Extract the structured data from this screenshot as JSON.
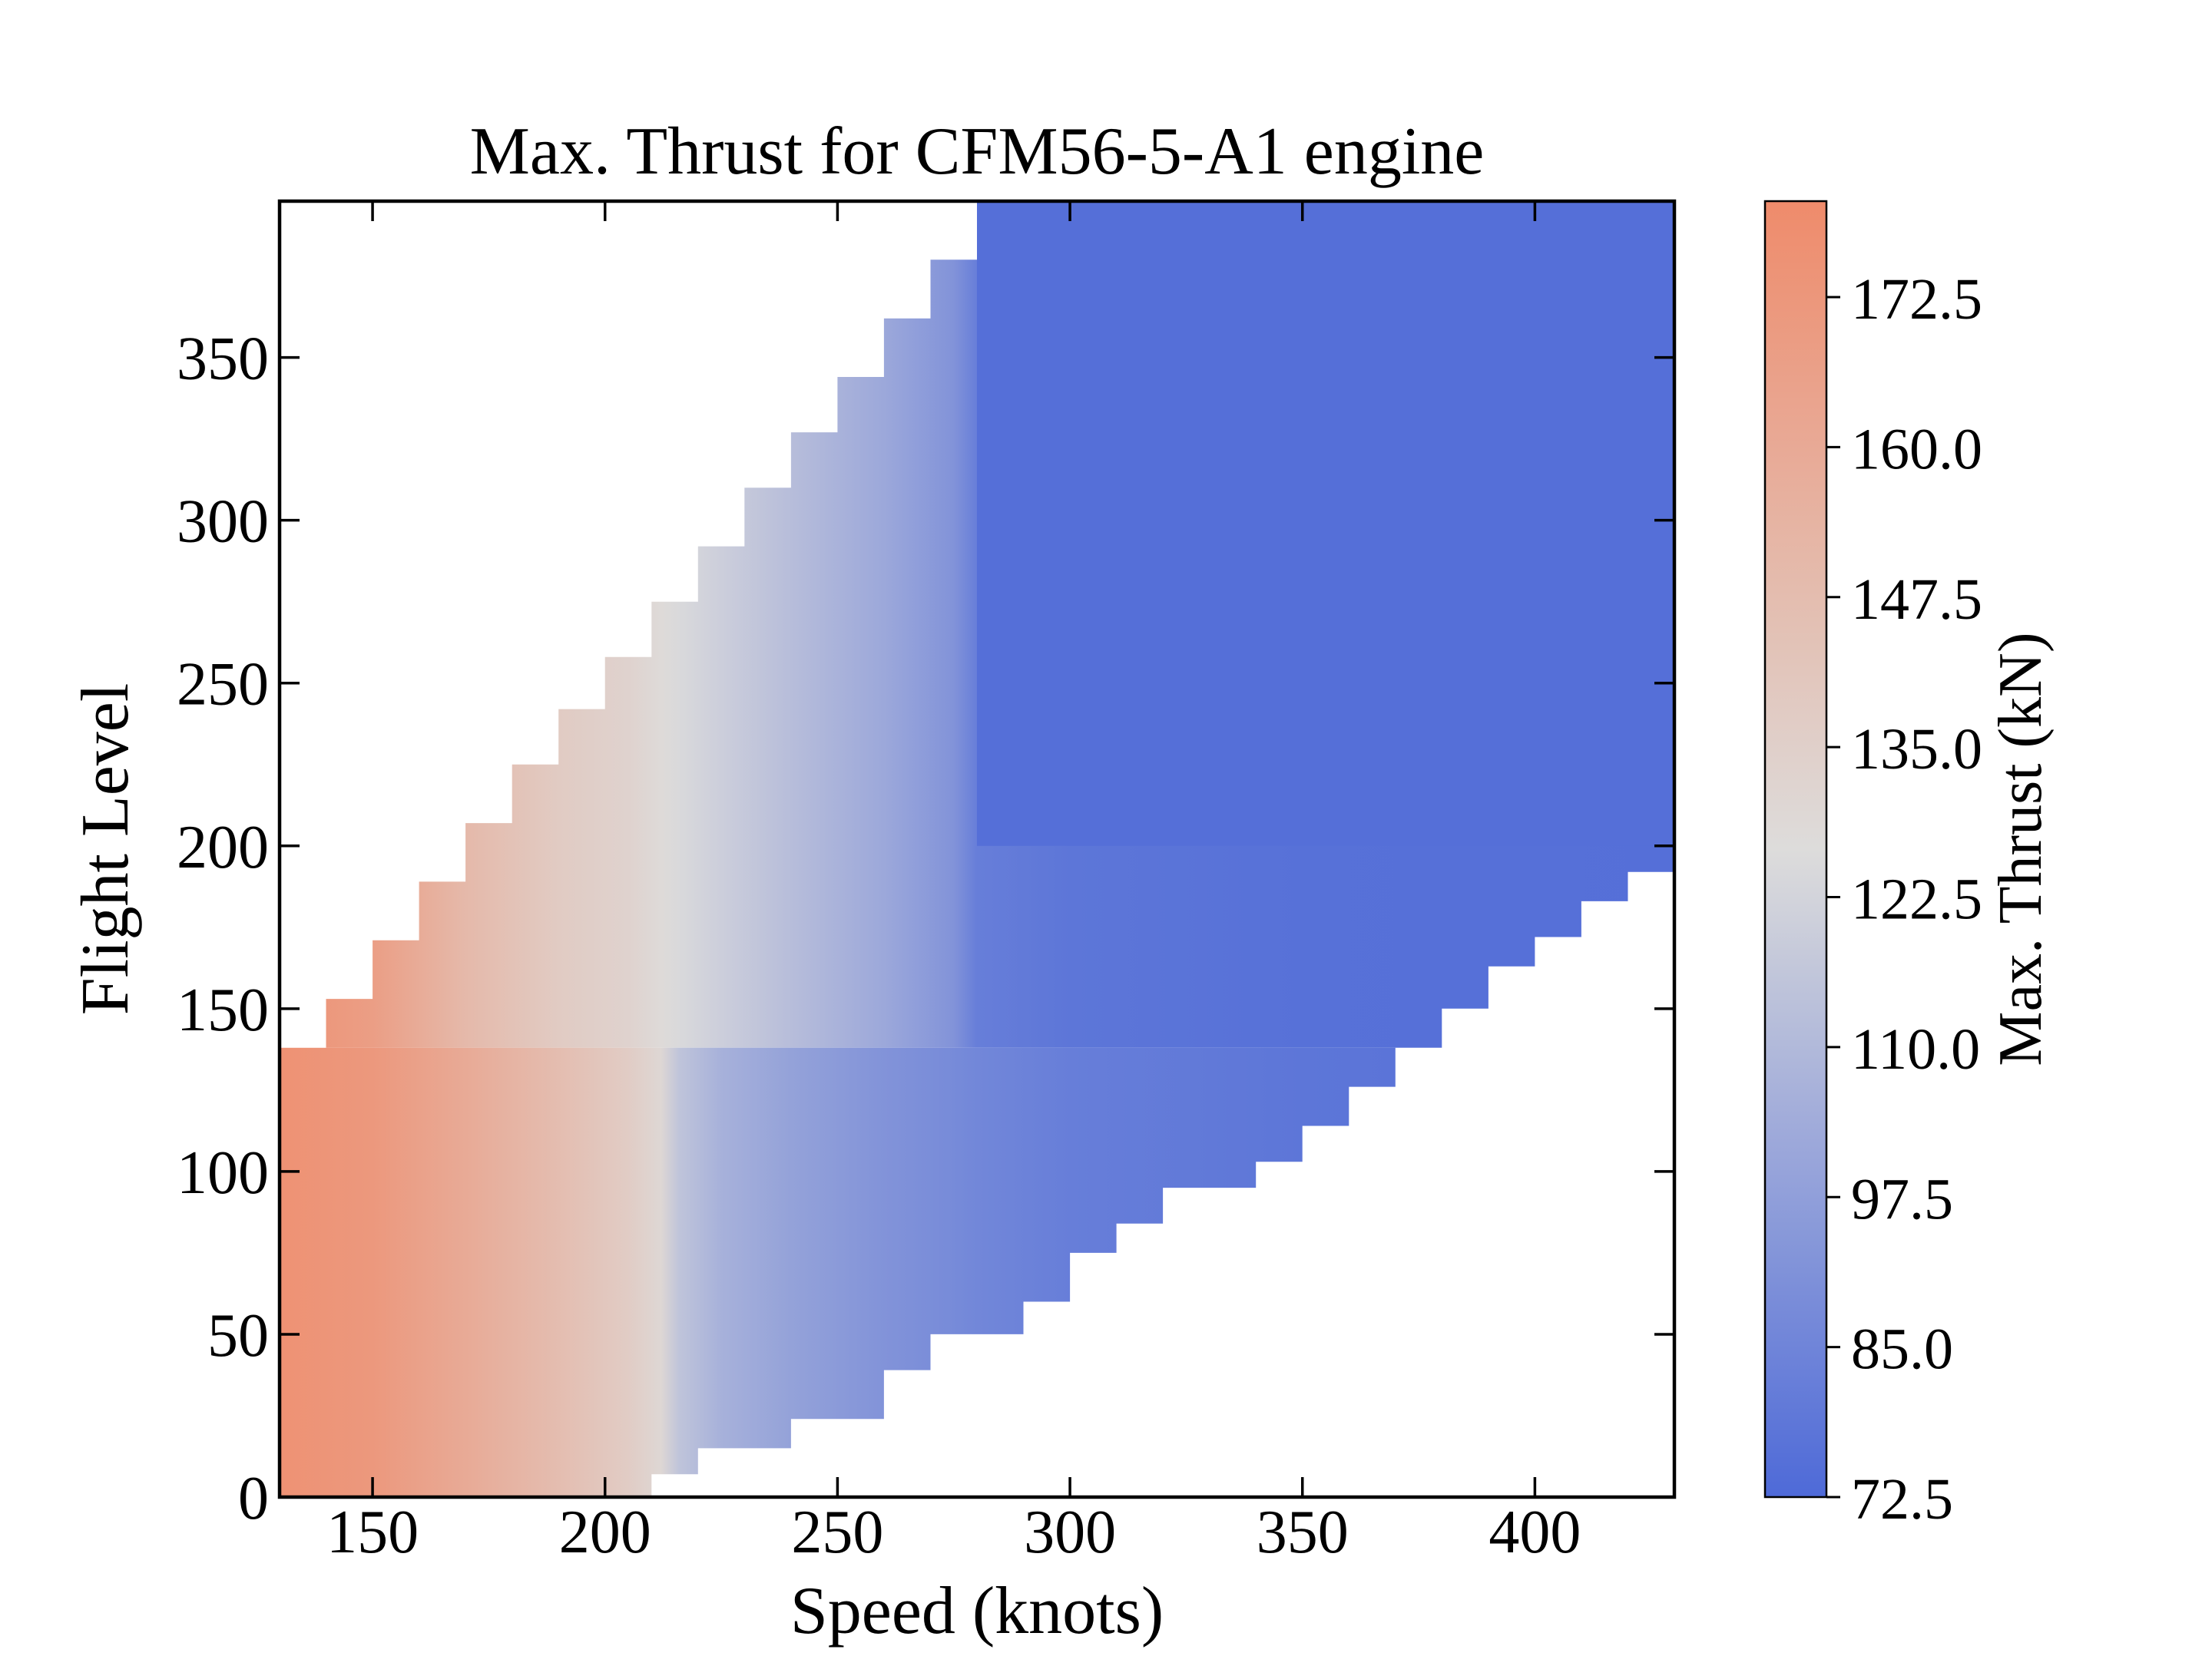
{
  "chart_data": {
    "type": "heatmap",
    "title": "Max. Thrust for CFM56-5-A1 engine",
    "xlabel": "Speed (knots)",
    "ylabel": "Flight Level",
    "xlim": [
      130,
      430
    ],
    "ylim": [
      0,
      398
    ],
    "x_ticks": [
      150,
      200,
      250,
      300,
      350,
      400
    ],
    "y_ticks": [
      0,
      50,
      100,
      150,
      200,
      250,
      300,
      350
    ],
    "grid": false,
    "colormap": "coolwarm",
    "colorbar": {
      "label": "Max. Thrust (kN)",
      "range": [
        72.5,
        180.5
      ],
      "ticks": [
        "72.5",
        "85.0",
        "97.5",
        "110.0",
        "122.5",
        "135.0",
        "147.5",
        "160.0",
        "172.5"
      ],
      "color_low": "#4e6ad8",
      "color_mid": "#dddcdb",
      "color_high": "#ef8b6b"
    },
    "envelope_min_speed_knots": [
      {
        "fl_from": 0,
        "fl_to": 138,
        "speed": 130
      },
      {
        "fl_from": 138,
        "fl_to": 153,
        "speed": 140
      },
      {
        "fl_from": 153,
        "fl_to": 171,
        "speed": 150
      },
      {
        "fl_from": 171,
        "fl_to": 189,
        "speed": 160
      },
      {
        "fl_from": 189,
        "fl_to": 207,
        "speed": 170
      },
      {
        "fl_from": 207,
        "fl_to": 225,
        "speed": 180
      },
      {
        "fl_from": 225,
        "fl_to": 242,
        "speed": 190
      },
      {
        "fl_from": 242,
        "fl_to": 258,
        "speed": 200
      },
      {
        "fl_from": 258,
        "fl_to": 275,
        "speed": 210
      },
      {
        "fl_from": 275,
        "fl_to": 292,
        "speed": 220
      },
      {
        "fl_from": 292,
        "fl_to": 310,
        "speed": 230
      },
      {
        "fl_from": 310,
        "fl_to": 327,
        "speed": 240
      },
      {
        "fl_from": 327,
        "fl_to": 344,
        "speed": 250
      },
      {
        "fl_from": 344,
        "fl_to": 362,
        "speed": 260
      },
      {
        "fl_from": 362,
        "fl_to": 380,
        "speed": 270
      },
      {
        "fl_from": 380,
        "fl_to": 398,
        "speed": 280
      }
    ],
    "envelope_max_speed_knots": [
      {
        "fl_from": 0,
        "fl_to": 7,
        "speed": 210
      },
      {
        "fl_from": 7,
        "fl_to": 15,
        "speed": 220
      },
      {
        "fl_from": 15,
        "fl_to": 24,
        "speed": 240
      },
      {
        "fl_from": 24,
        "fl_to": 39,
        "speed": 260
      },
      {
        "fl_from": 39,
        "fl_to": 50,
        "speed": 270
      },
      {
        "fl_from": 50,
        "fl_to": 60,
        "speed": 290
      },
      {
        "fl_from": 60,
        "fl_to": 75,
        "speed": 300
      },
      {
        "fl_from": 75,
        "fl_to": 84,
        "speed": 310
      },
      {
        "fl_from": 84,
        "fl_to": 95,
        "speed": 320
      },
      {
        "fl_from": 95,
        "fl_to": 103,
        "speed": 340
      },
      {
        "fl_from": 103,
        "fl_to": 114,
        "speed": 350
      },
      {
        "fl_from": 114,
        "fl_to": 126,
        "speed": 360
      },
      {
        "fl_from": 126,
        "fl_to": 138,
        "speed": 370
      },
      {
        "fl_from": 138,
        "fl_to": 150,
        "speed": 380
      },
      {
        "fl_from": 150,
        "fl_to": 163,
        "speed": 390
      },
      {
        "fl_from": 163,
        "fl_to": 172,
        "speed": 400
      },
      {
        "fl_from": 172,
        "fl_to": 183,
        "speed": 410
      },
      {
        "fl_from": 183,
        "fl_to": 192,
        "speed": 420
      },
      {
        "fl_from": 192,
        "fl_to": 200,
        "speed": 430
      },
      {
        "fl_from": 200,
        "fl_to": 398,
        "speed": 430
      }
    ],
    "thrust_profile_kN": [
      {
        "speed": 130,
        "fl_0_to_138": 176,
        "fl_above_138": 176
      },
      {
        "speed": 150,
        "fl_0_to_138": 172,
        "fl_above_138": 168
      },
      {
        "speed": 170,
        "fl_0_to_138": 160,
        "fl_above_138": 150
      },
      {
        "speed": 190,
        "fl_0_to_138": 147,
        "fl_above_138": 138
      },
      {
        "speed": 205,
        "fl_0_to_138": 137,
        "fl_above_138": 133
      },
      {
        "speed": 212,
        "fl_0_to_138": 130,
        "fl_above_138": 128
      },
      {
        "speed": 216,
        "fl_0_to_138": 115,
        "fl_above_138": 125
      },
      {
        "speed": 225,
        "fl_0_to_138": 106,
        "fl_above_138": 120
      },
      {
        "speed": 240,
        "fl_0_to_138": 99,
        "fl_above_138": 112
      },
      {
        "speed": 260,
        "fl_0_to_138": 92,
        "fl_above_138": 102
      },
      {
        "speed": 275,
        "fl_0_to_138": 88,
        "fl_above_138": 92
      },
      {
        "speed": 280,
        "fl_0_to_138": 86,
        "fl_above_138": 82
      },
      {
        "speed": 300,
        "fl_0_to_138": 82,
        "fl_above_138": 78
      },
      {
        "speed": 350,
        "fl_0_to_138": 78,
        "fl_above_138": 76
      },
      {
        "speed": 430,
        "fl_0_to_138": 75,
        "fl_above_138": 75
      }
    ]
  }
}
